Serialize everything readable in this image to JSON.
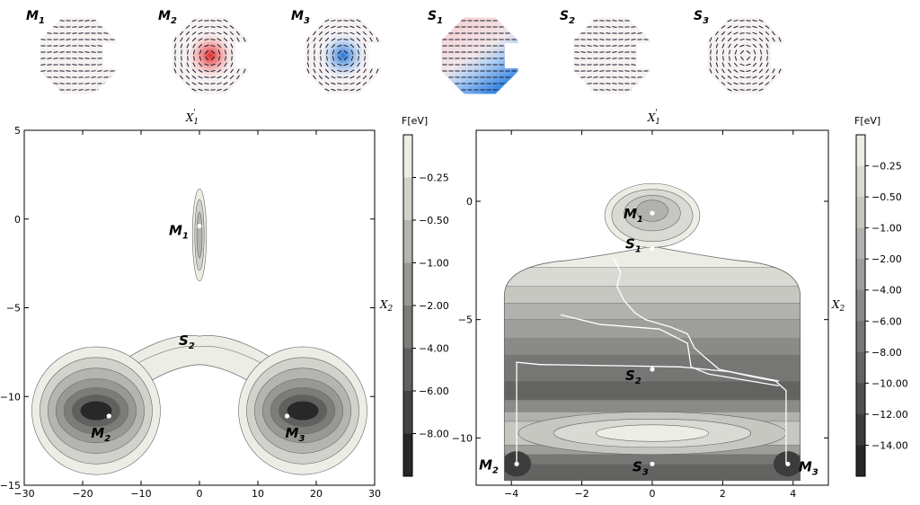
{
  "insets": [
    {
      "label": "M",
      "sub": "1",
      "tint": "none"
    },
    {
      "label": "M",
      "sub": "2",
      "tint": "red"
    },
    {
      "label": "M",
      "sub": "3",
      "tint": "blue"
    },
    {
      "label": "S",
      "sub": "1",
      "tint": "split"
    },
    {
      "label": "S",
      "sub": "2",
      "tint": "none"
    },
    {
      "label": "S",
      "sub": "3",
      "tint": "none"
    }
  ],
  "chart_data": [
    {
      "type": "contour",
      "xlabel_top": "X'1",
      "ylabel_right": "X2",
      "xlim": [
        -30,
        30
      ],
      "ylim": [
        -15,
        5
      ],
      "xticks": [
        -30,
        -20,
        -10,
        0,
        10,
        20,
        30
      ],
      "yticks": [
        -15,
        -10,
        -5,
        0,
        5
      ],
      "colorbar": {
        "title": "F[eV]",
        "levels": [
          "-0.25",
          "-0.50",
          "-1.00",
          "-2.00",
          "-4.00",
          "-6.00",
          "-8.00"
        ]
      },
      "points": [
        {
          "name": "M",
          "sub": "1",
          "x": 0,
          "y": -0.4
        },
        {
          "name": "S",
          "sub": "2",
          "x": -2,
          "y": -6.8
        },
        {
          "name": "M",
          "sub": "2",
          "x": -15.5,
          "y": -11.1
        },
        {
          "name": "M",
          "sub": "3",
          "x": 15,
          "y": -11.1
        }
      ]
    },
    {
      "type": "contour",
      "xlabel_top": "X'1",
      "ylabel_right": "X2",
      "xlim": [
        -5,
        5
      ],
      "ylim": [
        -12,
        3
      ],
      "xticks": [
        -4,
        -2,
        0,
        2,
        4
      ],
      "yticks": [
        0,
        -5,
        -10
      ],
      "colorbar": {
        "title": "F[eV]",
        "levels": [
          "-0.25",
          "-0.50",
          "-1.00",
          "-2.00",
          "-4.00",
          "-6.00",
          "-8.00",
          "-10.00",
          "-12.00",
          "-14.00"
        ]
      },
      "points": [
        {
          "name": "M",
          "sub": "1",
          "x": 0,
          "y": -0.5
        },
        {
          "name": "S",
          "sub": "1",
          "x": 0,
          "y": -2.0
        },
        {
          "name": "S",
          "sub": "2",
          "x": 0,
          "y": -7.1
        },
        {
          "name": "M",
          "sub": "2",
          "x": -3.85,
          "y": -11.1
        },
        {
          "name": "S",
          "sub": "3",
          "x": 0,
          "y": -11.1
        },
        {
          "name": "M",
          "sub": "3",
          "x": 3.85,
          "y": -11.1
        }
      ]
    }
  ]
}
